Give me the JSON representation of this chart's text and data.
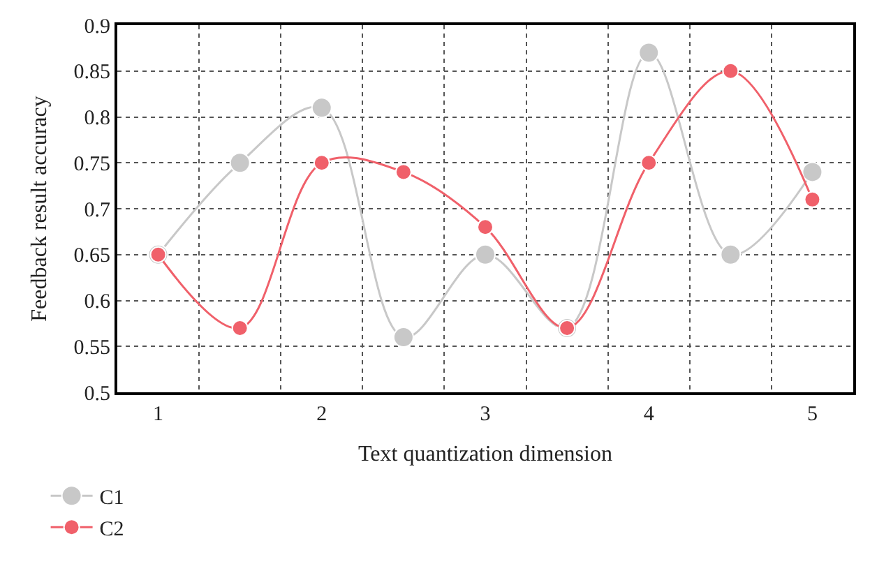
{
  "chart_data": {
    "type": "line",
    "xlabel": "Text quantization dimension",
    "ylabel": "Feedback result accuracy",
    "x": [
      1,
      1.5,
      2,
      2.5,
      3,
      3.5,
      4,
      4.5,
      5
    ],
    "series": [
      {
        "name": "C1",
        "color": "#c8c8c8",
        "values": [
          0.65,
          0.75,
          0.81,
          0.56,
          0.65,
          0.57,
          0.87,
          0.65,
          0.74
        ]
      },
      {
        "name": "C2",
        "color": "#f0606a",
        "values": [
          0.65,
          0.57,
          0.75,
          0.74,
          0.68,
          0.57,
          0.75,
          0.85,
          0.71
        ]
      }
    ],
    "xlim": [
      0.75,
      5.25
    ],
    "xticks": [
      1,
      2,
      3,
      4,
      5
    ],
    "ylim": [
      0.5,
      0.9
    ],
    "yticks": [
      0.5,
      0.55,
      0.6,
      0.65,
      0.7,
      0.75,
      0.8,
      0.85,
      0.9
    ],
    "grid": true,
    "legend": "bottom left",
    "marker": "circle",
    "line_style": "solid"
  }
}
